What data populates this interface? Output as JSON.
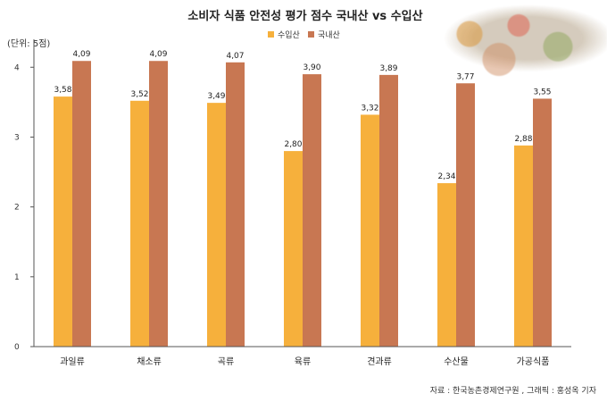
{
  "chart_data": {
    "type": "bar",
    "title": "소비자 식품 안전성 평가 점수 국내산 vs 수입산",
    "unit_label": "(단위: 5점)",
    "source": "자료 : 한국농촌경제연구원 , 그래픽 : 홍성옥 기자",
    "categories": [
      "과일류",
      "채소류",
      "곡류",
      "육류",
      "견과류",
      "수산물",
      "가공식품"
    ],
    "series": [
      {
        "name": "수입산",
        "color": "#F6B03C",
        "values": [
          3.58,
          3.52,
          3.49,
          2.8,
          3.32,
          2.34,
          2.88
        ],
        "labels": [
          "3,58",
          "3,52",
          "3,49",
          "2,80",
          "3,32",
          "2,34",
          "2,88"
        ]
      },
      {
        "name": "국내산",
        "color": "#C87752",
        "values": [
          4.09,
          4.09,
          4.07,
          3.9,
          3.89,
          3.77,
          3.55
        ],
        "labels": [
          "4,09",
          "4,09",
          "4,07",
          "3,90",
          "3,89",
          "3,77",
          "3,55"
        ]
      }
    ],
    "ylim": [
      0,
      4.4
    ],
    "yticks": [
      "0",
      "1",
      "2",
      "3",
      "4"
    ],
    "grid": false,
    "legend_position": "top"
  }
}
